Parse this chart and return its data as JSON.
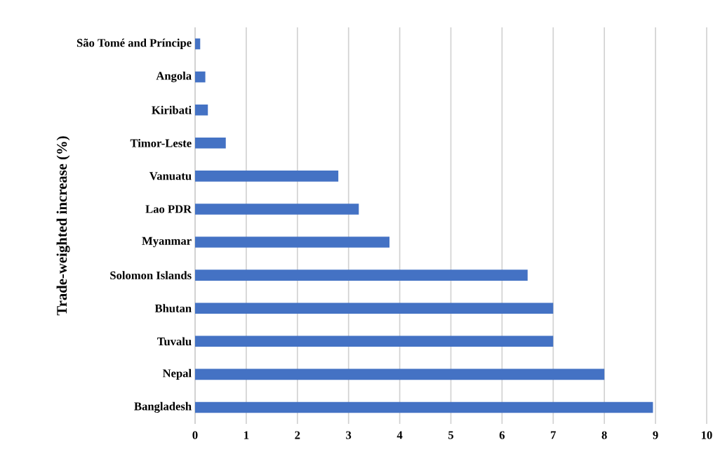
{
  "chart_data": {
    "type": "bar",
    "orientation": "horizontal",
    "ylabel": "Trade-weighted increase (%)",
    "categories": [
      "São Tomé and Príncipe",
      "Angola",
      "Kiribati",
      "Timor-Leste",
      "Vanuatu",
      "Lao PDR",
      "Myanmar",
      "Solomon Islands",
      "Bhutan",
      "Tuvalu",
      "Nepal",
      "Bangladesh"
    ],
    "values": [
      0.1,
      0.2,
      0.25,
      0.6,
      2.8,
      3.2,
      3.8,
      6.5,
      7,
      7,
      8,
      8.95
    ],
    "color": "#4472c4",
    "xlim": [
      0,
      10
    ],
    "xticks": [
      0,
      1,
      2,
      3,
      4,
      5,
      6,
      7,
      8,
      9,
      10
    ],
    "grid": "x"
  }
}
